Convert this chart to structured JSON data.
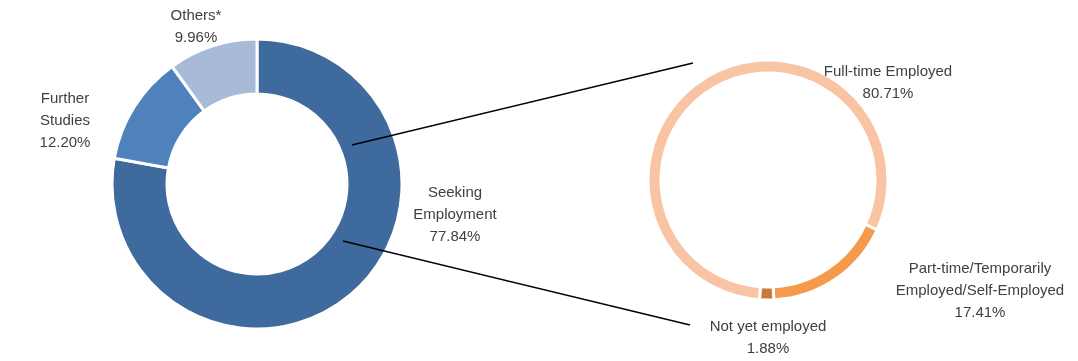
{
  "chart_data": [
    {
      "type": "donut",
      "categories": [
        "Seeking Employment",
        "Further Studies",
        "Others*"
      ],
      "values": [
        77.84,
        12.2,
        9.96
      ],
      "colors": [
        "#3e6a9e",
        "#4f81bd",
        "#a9b9d8"
      ],
      "value_labels": [
        "77.84%",
        "12.20%",
        "9.96%"
      ]
    },
    {
      "type": "donut",
      "categories": [
        "Full-time Employed",
        "Part-time/Temporarily Employed/Self-Employed",
        "Not yet employed"
      ],
      "values": [
        80.71,
        17.41,
        1.88
      ],
      "colors": [
        "#f8c4a4",
        "#f59a4b",
        "#c87a3c"
      ],
      "value_labels": [
        "80.71%",
        "17.41%",
        "1.88%"
      ]
    }
  ]
}
